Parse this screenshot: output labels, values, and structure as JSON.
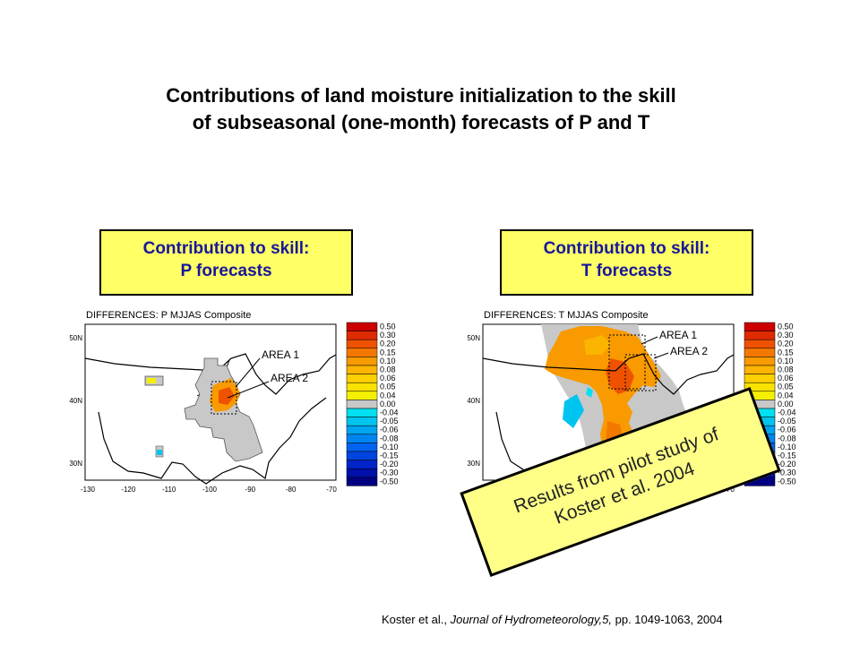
{
  "title": {
    "line1": "Contributions of land moisture initialization to the skill",
    "line2": "of subseasonal (one-month) forecasts of P and T"
  },
  "boxes": {
    "p": {
      "line1": "Contribution to skill:",
      "line2": "P forecasts"
    },
    "t": {
      "line1": "Contribution to skill:",
      "line2": "T forecasts"
    }
  },
  "maps": {
    "p": {
      "header": "DIFFERENCES:  P    MJJAS Composite",
      "area1": "AREA 1",
      "area2": "AREA 2"
    },
    "t": {
      "header": "DIFFERENCES:  T    MJJAS Composite",
      "area1": "AREA 1",
      "area2": "AREA 2"
    }
  },
  "lat_labels": [
    "50N",
    "40N",
    "30N"
  ],
  "lon_labels": [
    "-130",
    "-120",
    "-110",
    "-100",
    "-90",
    "-80",
    "-70"
  ],
  "colorbar": {
    "labels": [
      "0.50",
      "0.30",
      "0.20",
      "0.15",
      "0.10",
      "0.08",
      "0.06",
      "0.05",
      "0.04",
      "0.00",
      "-0.04",
      "-0.05",
      "-0.06",
      "-0.08",
      "-0.10",
      "-0.15",
      "-0.20",
      "-0.30",
      "-0.50"
    ],
    "colors": [
      "#cc0000",
      "#e02a00",
      "#ee5200",
      "#f47800",
      "#f89a00",
      "#fbb400",
      "#fcd000",
      "#f8e200",
      "#f4f000",
      "#c8c8c8",
      "#00e0f0",
      "#00c4f0",
      "#00a4f0",
      "#0084f0",
      "#0064f0",
      "#0044e0",
      "#0024c8",
      "#0010a8",
      "#000080"
    ]
  },
  "note": {
    "line1": "Results from pilot study of",
    "line2": "Koster et al. 2004"
  },
  "citation": {
    "author": "Koster et al., ",
    "journal": "Journal of Hydrometeorology,5,",
    "rest": " pp. 1049-1063, 2004"
  }
}
